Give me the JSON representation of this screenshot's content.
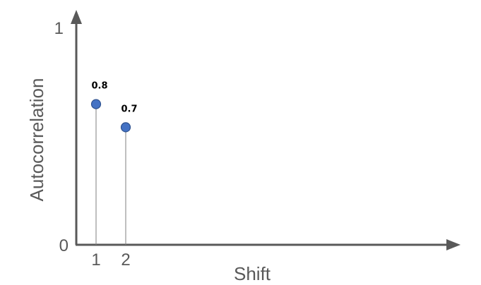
{
  "chart_data": {
    "type": "scatter",
    "title": "",
    "xlabel": "Shift",
    "ylabel": "Autocorrelation",
    "x": [
      1,
      2
    ],
    "values": [
      0.8,
      0.7
    ],
    "data_labels": [
      "0.8",
      "0.7"
    ],
    "x_ticks": [
      "1",
      "2"
    ],
    "y_ticks": [
      "0",
      "1"
    ],
    "ylim": [
      0,
      1
    ],
    "grid": false,
    "legend": "none",
    "colors": {
      "marker": "#4472c4",
      "marker_edge": "#2f528f",
      "stem": "#7f7f7f",
      "axis": "#595959"
    }
  }
}
